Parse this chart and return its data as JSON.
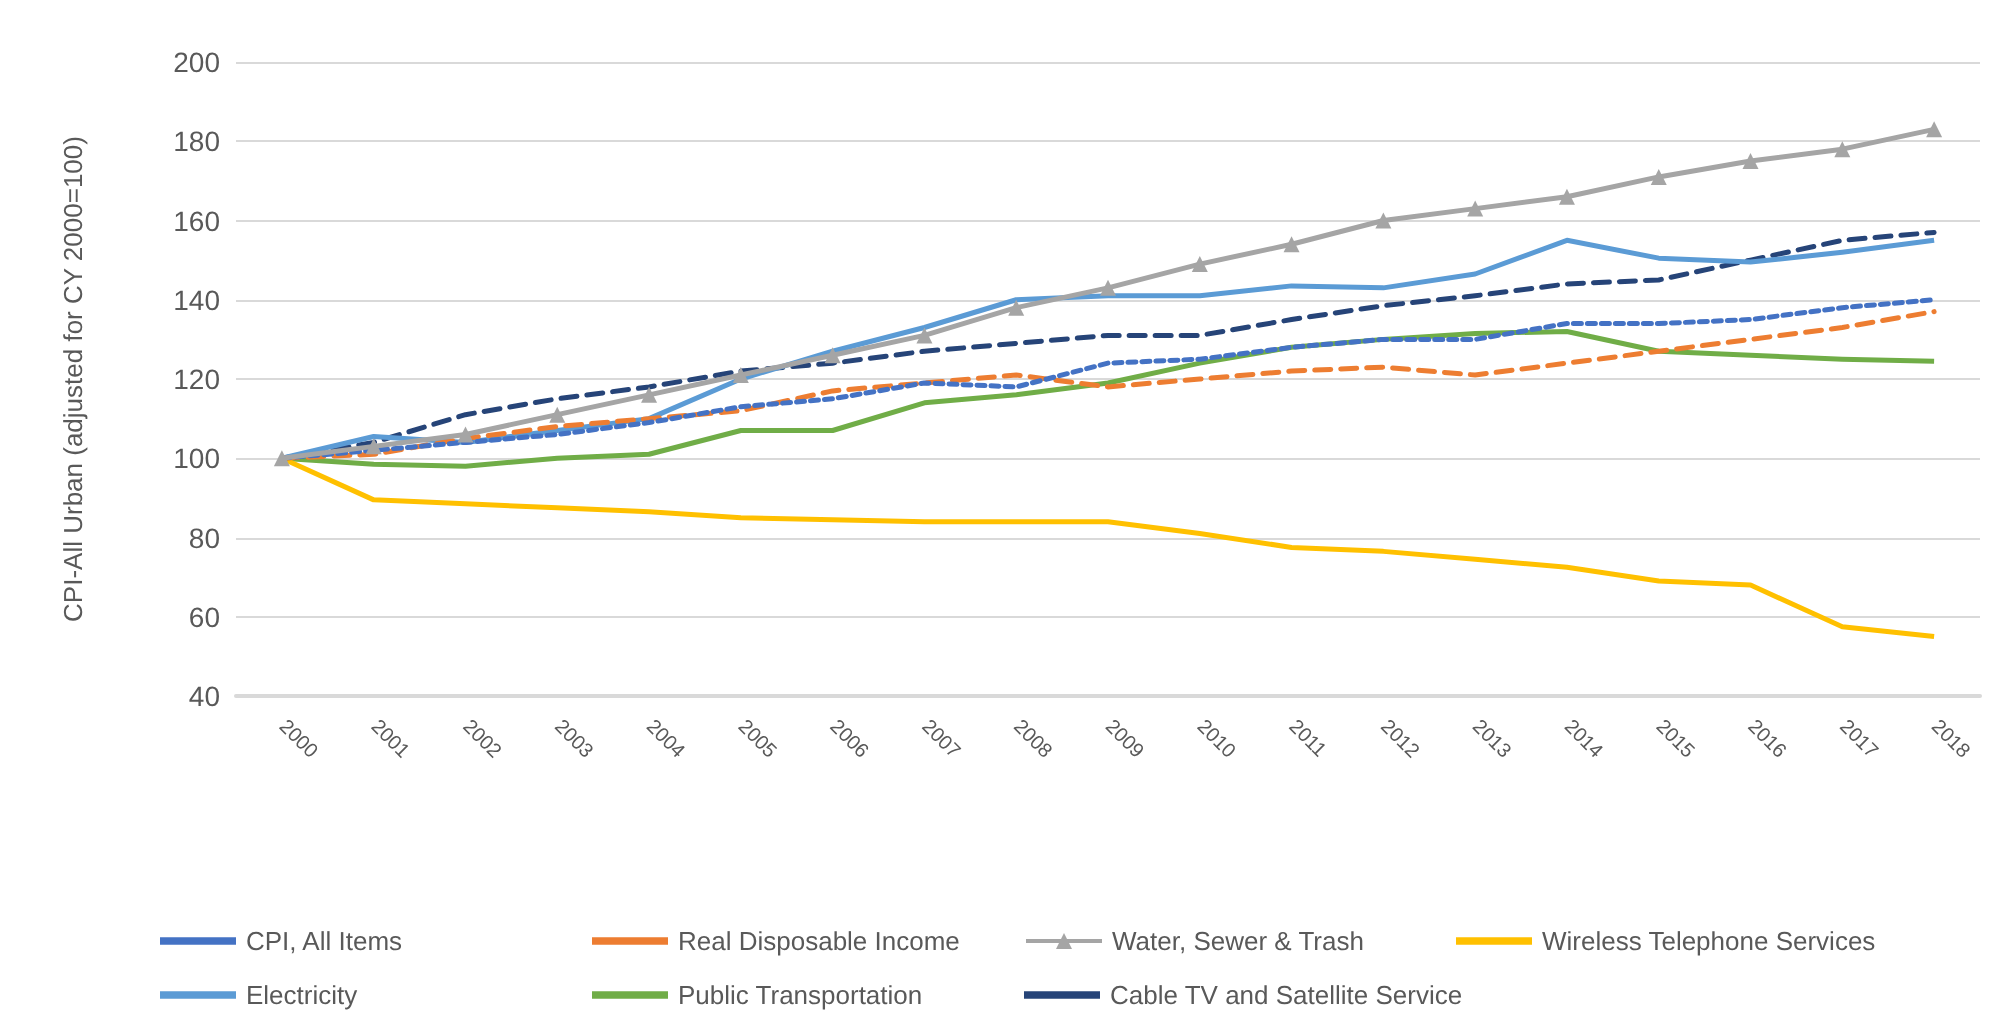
{
  "chart_data": {
    "type": "line",
    "ylabel": "CPI-All Urban (adjusted for CY 2000=100)",
    "categories": [
      "2000",
      "2001",
      "2002",
      "2003",
      "2004",
      "2005",
      "2006",
      "2007",
      "2008",
      "2009",
      "2010",
      "2011",
      "2012",
      "2013",
      "2014",
      "2015",
      "2016",
      "2017",
      "2018"
    ],
    "ylim": [
      40,
      200
    ],
    "yticks": [
      40,
      60,
      80,
      100,
      120,
      140,
      160,
      180,
      200
    ],
    "grid": "y",
    "legend": "bottom",
    "series": [
      {
        "name": "CPI, All Items",
        "color": "#4472c4",
        "line_style": "dotted",
        "marker": "none",
        "values": [
          100,
          102,
          104,
          106,
          109,
          113,
          115,
          119,
          118,
          124,
          125,
          128,
          130,
          130,
          134,
          134,
          135,
          138,
          140
        ]
      },
      {
        "name": "Real Disposable Income",
        "color": "#ed7d31",
        "line_style": "dashed",
        "marker": "none",
        "values": [
          100,
          101,
          105,
          108,
          110,
          112,
          117,
          119,
          121,
          118,
          120,
          122,
          123,
          121,
          124,
          127,
          130,
          133,
          137
        ]
      },
      {
        "name": "Water, Sewer & Trash",
        "color": "#a5a5a5",
        "line_style": "solid",
        "marker": "triangle",
        "values": [
          100,
          103,
          106,
          111,
          116,
          121,
          126,
          131,
          138,
          143,
          149,
          154,
          160,
          163,
          166,
          171,
          175,
          178,
          183
        ]
      },
      {
        "name": "Wireless Telephone Services",
        "color": "#ffc000",
        "line_style": "solid",
        "marker": "none",
        "values": [
          100,
          89.5,
          88.5,
          87.5,
          86.5,
          85,
          84.5,
          84,
          84,
          84,
          81,
          77.5,
          76.5,
          74.5,
          72.5,
          69,
          68,
          57.5,
          55
        ]
      },
      {
        "name": "Electricity",
        "color": "#5b9bd5",
        "line_style": "solid",
        "marker": "none",
        "values": [
          100,
          105.5,
          104,
          107,
          110,
          120,
          127,
          133,
          140,
          141,
          141,
          143.5,
          143,
          146.5,
          155,
          150.5,
          149.5,
          152,
          155
        ]
      },
      {
        "name": "Public Transportation",
        "color": "#70ad47",
        "line_style": "solid",
        "marker": "none",
        "values": [
          100,
          98.5,
          98,
          100,
          101,
          107,
          107,
          114,
          116,
          119,
          124,
          128,
          130,
          131.5,
          132,
          127,
          126,
          125,
          124.5
        ]
      },
      {
        "name": "Cable TV and Satellite Service",
        "color": "#264478",
        "line_style": "dashed",
        "marker": "none",
        "values": [
          100,
          104,
          111,
          115,
          118,
          122,
          124,
          127,
          129,
          131,
          131,
          135,
          138.5,
          141,
          144,
          145,
          150,
          155,
          157
        ]
      }
    ]
  }
}
